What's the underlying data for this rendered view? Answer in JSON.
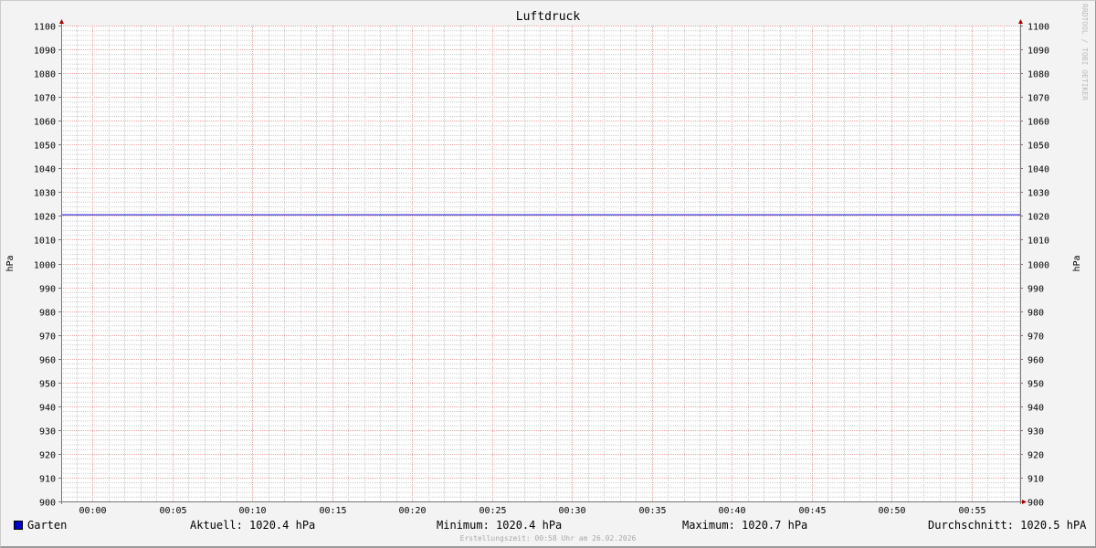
{
  "chart_data": {
    "type": "line",
    "title": "Luftdruck",
    "ylabel": "hPa",
    "ylabel_right": "hPa",
    "ylim": [
      900,
      1100
    ],
    "y_ticks": [
      900,
      910,
      920,
      930,
      940,
      950,
      960,
      970,
      980,
      990,
      1000,
      1010,
      1020,
      1030,
      1040,
      1050,
      1060,
      1070,
      1080,
      1090,
      1100
    ],
    "x_ticks": [
      "00:00",
      "00:05",
      "00:10",
      "00:15",
      "00:20",
      "00:25",
      "00:30",
      "00:35",
      "00:40",
      "00:45",
      "00:50",
      "00:55"
    ],
    "grid": true,
    "series": [
      {
        "name": "Garten",
        "color": "#0000cc",
        "x": [
          "23:58",
          "00:00",
          "00:10",
          "00:20",
          "00:30",
          "00:40",
          "00:50",
          "00:58"
        ],
        "values": [
          1020.5,
          1020.5,
          1020.5,
          1020.5,
          1020.5,
          1020.5,
          1020.5,
          1020.5
        ]
      }
    ]
  },
  "legend": {
    "series_name": "Garten",
    "current": "Aktuell: 1020.4 hPa",
    "minimum": "Minimum: 1020.4 hPa",
    "maximum": "Maximum: 1020.7 hPa",
    "average": "Durchschnitt: 1020.5 hPA"
  },
  "footer": "Erstellungszeit: 00:58 Uhr am 26.02.2026",
  "watermark": "RRDTOOL / TOBI OETIKER"
}
